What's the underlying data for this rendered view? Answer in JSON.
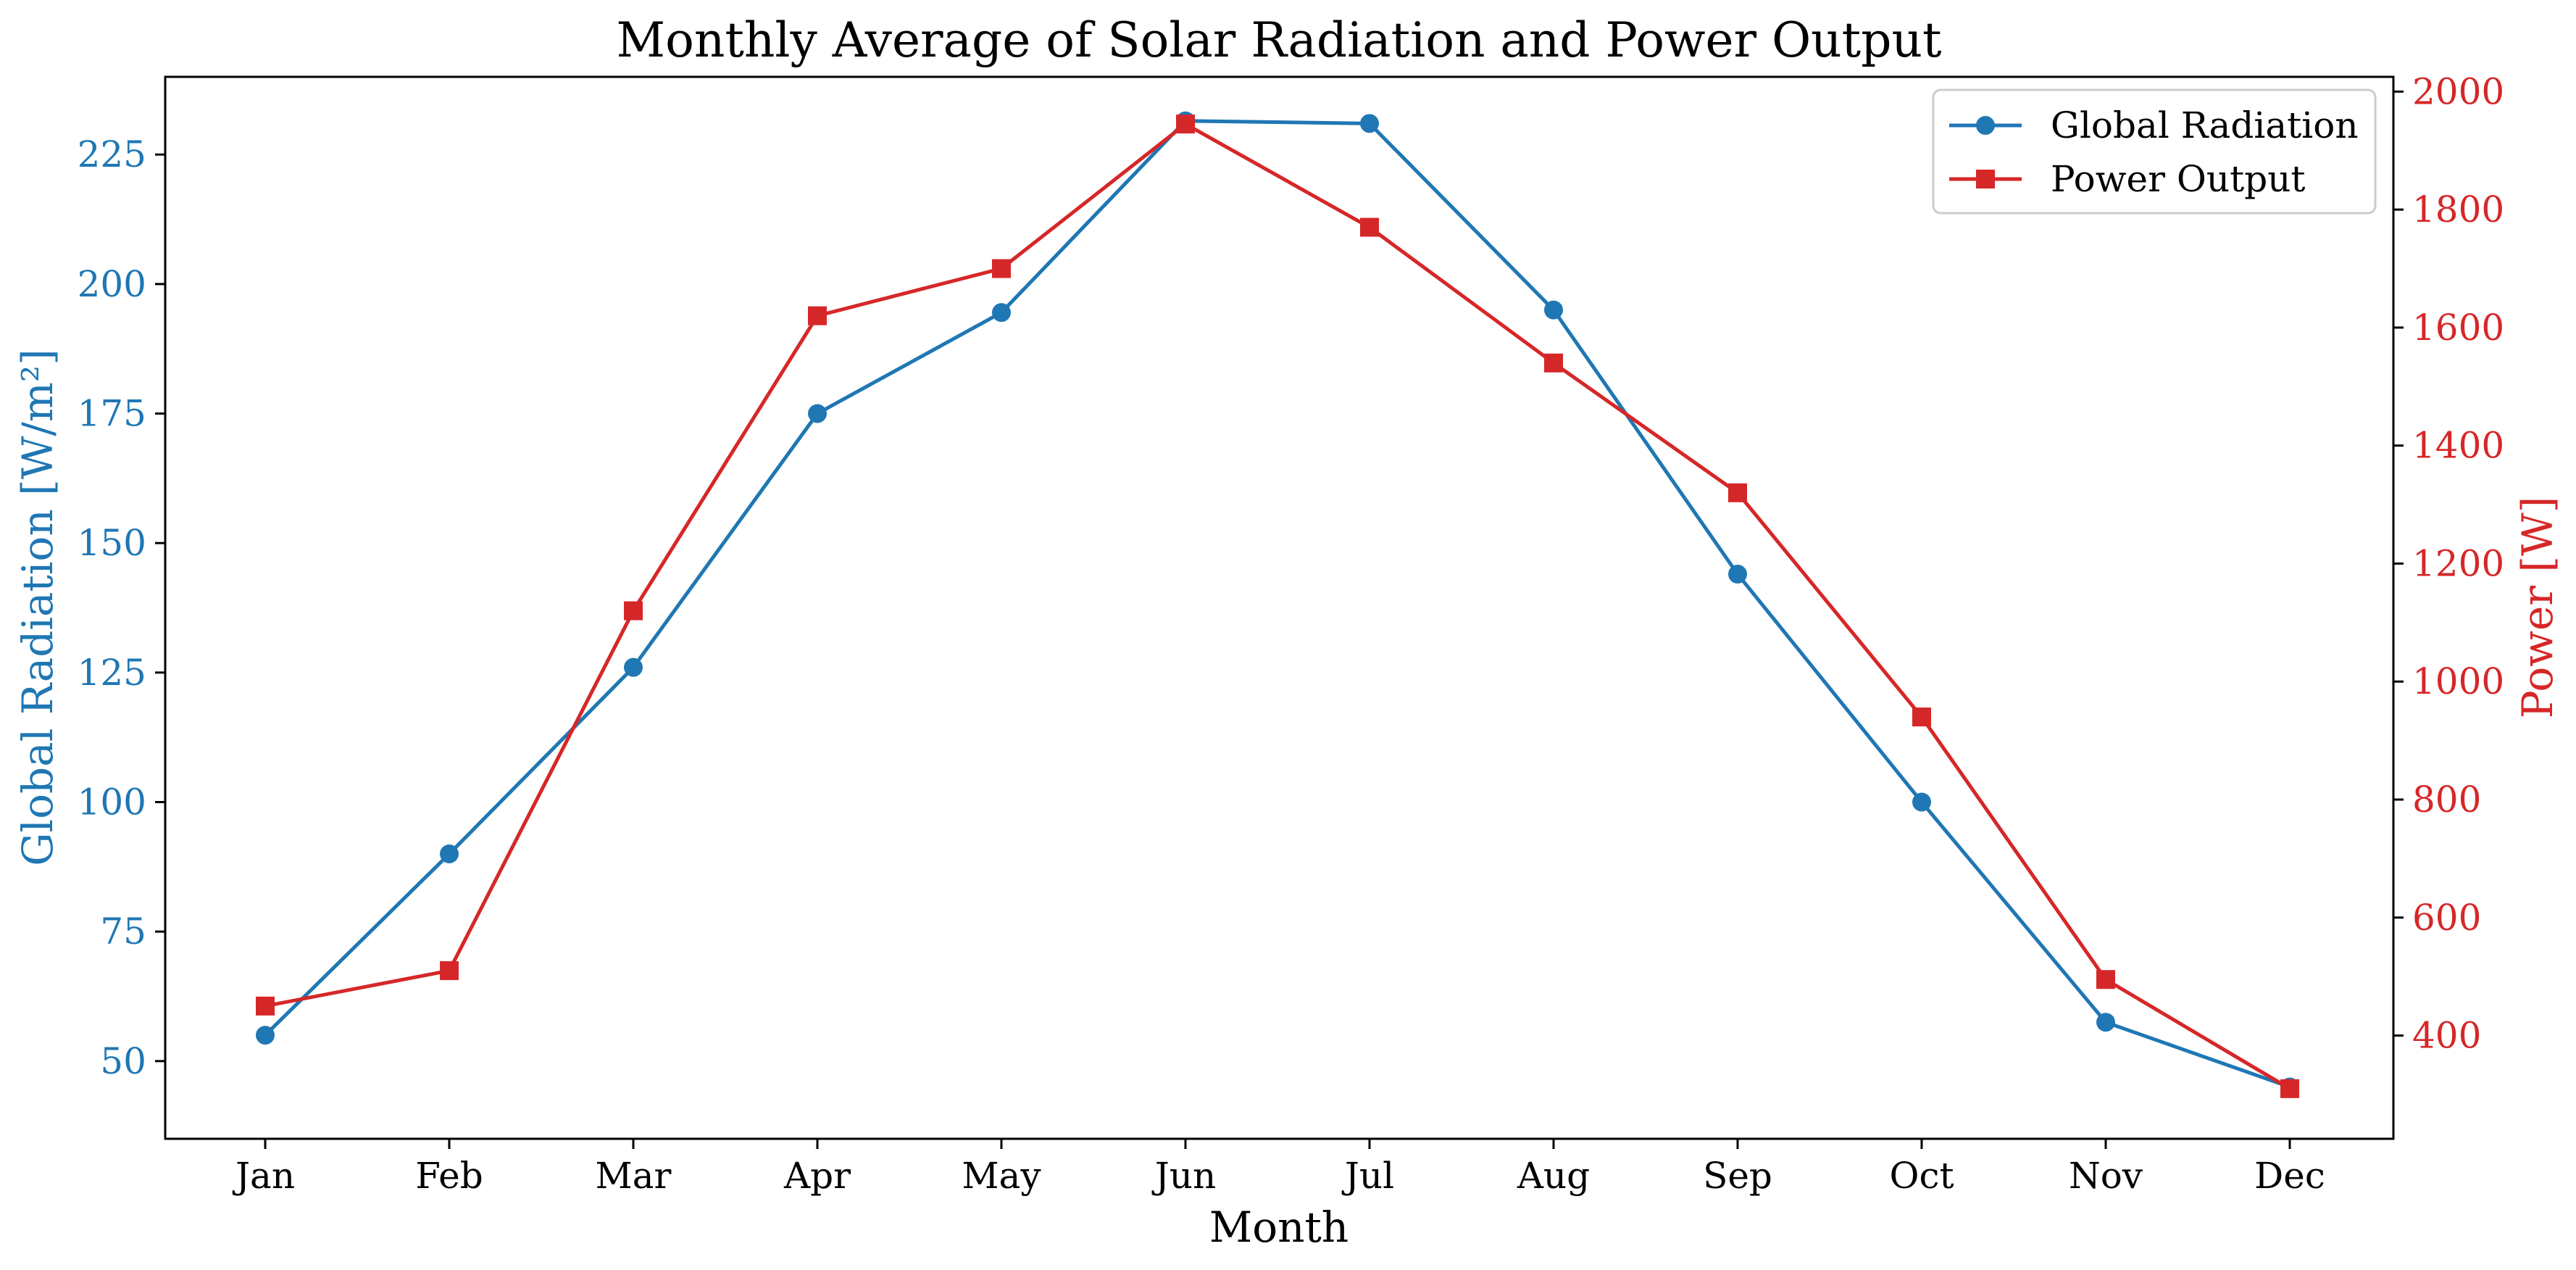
{
  "chart_data": {
    "type": "line",
    "title": "Monthly Average of Solar Radiation and Power Output",
    "xlabel": "Month",
    "categories": [
      "Jan",
      "Feb",
      "Mar",
      "Apr",
      "May",
      "Jun",
      "Jul",
      "Aug",
      "Sep",
      "Oct",
      "Nov",
      "Dec"
    ],
    "y_left": {
      "label": "Global Radiation [W/m²]",
      "color": "#1f77b4",
      "lim": [
        35,
        240
      ],
      "ticks": [
        50,
        75,
        100,
        125,
        150,
        175,
        200,
        225
      ]
    },
    "y_right": {
      "label": "Power [W]",
      "color": "#d62728",
      "lim": [
        225,
        2025
      ],
      "ticks": [
        400,
        600,
        800,
        1000,
        1200,
        1400,
        1600,
        1800,
        2000
      ]
    },
    "series": [
      {
        "name": "Global Radiation",
        "axis": "left",
        "marker": "circle",
        "color": "#1f77b4",
        "values": [
          55,
          90,
          126,
          175,
          194.5,
          231.5,
          231,
          195,
          144,
          100,
          57.5,
          45
        ]
      },
      {
        "name": "Power Output",
        "axis": "right",
        "marker": "square",
        "color": "#d62728",
        "values": [
          450,
          510,
          1120,
          1620,
          1700,
          1945,
          1770,
          1540,
          1320,
          940,
          495,
          310
        ]
      }
    ],
    "grid": false,
    "legend": "top-right"
  }
}
